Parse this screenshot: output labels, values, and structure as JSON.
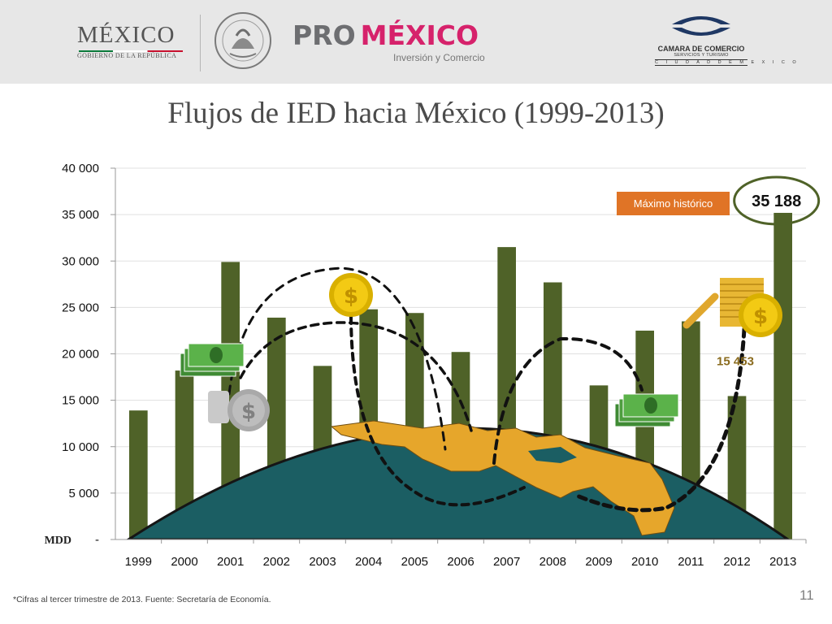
{
  "header": {
    "logo_gobierno": {
      "word": "MÉXICO",
      "subtitle": "GOBIERNO DE LA REPÚBLICA"
    },
    "logo_promexico": {
      "part1": "PRO",
      "part2": "MÉXICO",
      "subtitle": "Inversión y Comercio"
    },
    "logo_canaco": {
      "line1": "CAMARA DE COMERCIO",
      "line2": "SERVICIOS Y TURISMO",
      "line3": "C I U D A D   D E   M E X I C O"
    }
  },
  "slide": {
    "title": "Flujos de IED hacia México (1999-2013)",
    "footnote": "*Cifras al tercer trimestre de 2013. Fuente: Secretaría de Economía.",
    "page_number": "11"
  },
  "colors": {
    "bar": "#4f6228",
    "badge": "#e07426",
    "earth_ocean": "#1b5e63",
    "land": "#e6a62b",
    "grid": "#e0e0e0"
  },
  "chart_data": {
    "type": "bar",
    "categories": [
      "1999",
      "2000",
      "2001",
      "2002",
      "2003",
      "2004",
      "2005",
      "2006",
      "2007",
      "2008",
      "2009",
      "2010",
      "2011",
      "2012",
      "2013"
    ],
    "values": [
      13900,
      18200,
      29900,
      23900,
      18700,
      24800,
      24400,
      20200,
      31500,
      27700,
      16600,
      22500,
      23500,
      15453,
      35188
    ],
    "ylim": [
      0,
      40000
    ],
    "yticks": [
      0,
      5000,
      10000,
      15000,
      20000,
      25000,
      30000,
      35000,
      40000
    ],
    "ytick_labels": [
      "-",
      "5 000",
      "10 000",
      "15 000",
      "20 000",
      "25 000",
      "30 000",
      "35 000",
      "40 000"
    ],
    "ylabel": "MDD",
    "grid": true,
    "annotations": [
      {
        "text": "Máximo histórico",
        "category": "2013"
      },
      {
        "text": "35 188",
        "category": "2013"
      },
      {
        "text": "15 453",
        "category": "2012"
      }
    ]
  }
}
